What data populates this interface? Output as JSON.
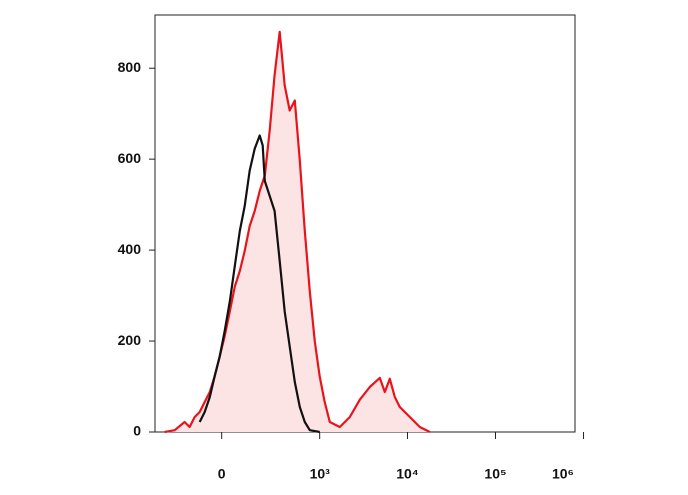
{
  "chart_data": {
    "type": "histogram-overlay",
    "xscale": "asinh",
    "xlim": [
      -430,
      800000
    ],
    "xticks": [
      0,
      {
        "value": 1000,
        "label": "10³"
      },
      {
        "value": 10000,
        "label": "10⁴"
      },
      {
        "value": 100000,
        "label": "10⁵"
      },
      {
        "value": 1000000,
        "label": "10⁶"
      }
    ],
    "ylim": [
      0,
      917
    ],
    "yticks": [
      0,
      200,
      400,
      600,
      800
    ],
    "series": [
      {
        "color": "#e8141b",
        "fill": "#fde4e4",
        "x": [
          -327,
          -242,
          -175,
          -146,
          -119,
          -94,
          -71,
          -49,
          -29,
          -8,
          12,
          33,
          54,
          76,
          99,
          124,
          151,
          181,
          214,
          250,
          290,
          336,
          388,
          446,
          513,
          588,
          673,
          769,
          879,
          1000,
          1142,
          1305,
          1700,
          2209,
          2870,
          3730,
          4850,
          5520,
          6290,
          7170,
          8180,
          10630,
          13800,
          17950
        ],
        "values": [
          0,
          4,
          22,
          11,
          33,
          44,
          66,
          88,
          122,
          166,
          210,
          265,
          320,
          354,
          398,
          453,
          486,
          530,
          564,
          663,
          785,
          880,
          762,
          707,
          729,
          597,
          442,
          309,
          199,
          122,
          66,
          22,
          11,
          33,
          71,
          99,
          119,
          88,
          117,
          77,
          55,
          33,
          11,
          0
        ]
      },
      {
        "color": "#111111",
        "x": [
          -94,
          -71,
          -49,
          -29,
          -8,
          12,
          33,
          54,
          76,
          99,
          124,
          151,
          181,
          200,
          214,
          250,
          290,
          336,
          388,
          446,
          513,
          588,
          673,
          769,
          1000
        ],
        "values": [
          22,
          44,
          77,
          122,
          166,
          221,
          287,
          365,
          442,
          497,
          575,
          623,
          652,
          630,
          552,
          519,
          486,
          376,
          265,
          188,
          110,
          55,
          22,
          4,
          0
        ]
      }
    ]
  }
}
